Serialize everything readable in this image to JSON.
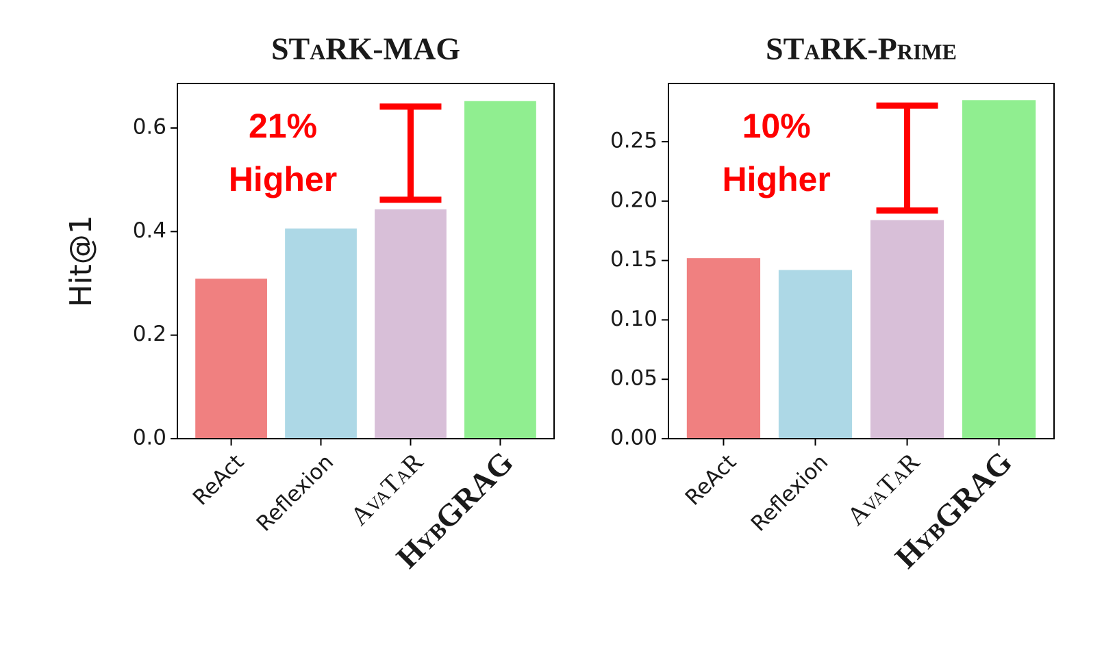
{
  "chart_data": [
    {
      "type": "bar",
      "title": "STaRK-MAG",
      "y_label": "Hit@1",
      "categories": [
        "ReAct",
        "Reflexion",
        "AvaTaR",
        "HybGRAG"
      ],
      "values": [
        0.309,
        0.406,
        0.443,
        0.652
      ],
      "colors": [
        "#f08080",
        "#add8e6",
        "#d8bfd8",
        "#90ee90"
      ],
      "ylim": [
        0,
        0.686
      ],
      "yticks": [
        0.0,
        0.2,
        0.4,
        0.6
      ],
      "annotation": [
        "21%",
        "Higher"
      ],
      "annotation_color": "#ff0000"
    },
    {
      "type": "bar",
      "title": "STaRK-Prime",
      "categories": [
        "ReAct",
        "Reflexion",
        "AvaTaR",
        "HybGRAG"
      ],
      "values": [
        0.152,
        0.142,
        0.184,
        0.285
      ],
      "colors": [
        "#f08080",
        "#add8e6",
        "#d8bfd8",
        "#90ee90"
      ],
      "ylim": [
        0,
        0.299
      ],
      "yticks": [
        0.0,
        0.05,
        0.1,
        0.15,
        0.2,
        0.25
      ],
      "annotation": [
        "10%",
        "Higher"
      ],
      "annotation_color": "#ff0000"
    }
  ]
}
